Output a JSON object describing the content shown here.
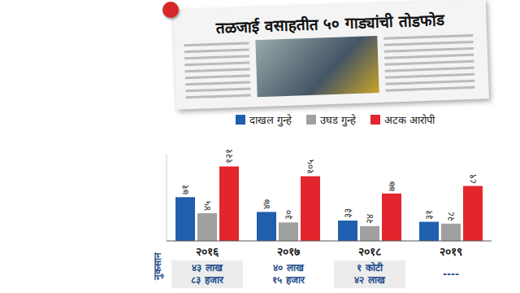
{
  "chart_data": {
    "type": "bar",
    "title": "तळजाई वसाहतीत ५० गाड्यांची तोडफोड",
    "categories": [
      "२०१६",
      "२०१७",
      "२०१८",
      "२०१९"
    ],
    "series": [
      {
        "name": "दाखल गुन्हे",
        "color": "#1f5fae",
        "values": [
          71,
          47,
          33,
          31
        ],
        "value_labels": [
          "७१",
          "४७",
          "३३",
          "३१"
        ]
      },
      {
        "name": "उघड गुन्हे",
        "color": "#a0a0a0",
        "values": [
          45,
          30,
          24,
          28
        ],
        "value_labels": [
          "४५",
          "३०",
          "२४",
          "२८"
        ]
      },
      {
        "name": "अटक आरोपी",
        "color": "#e3262d",
        "values": [
          121,
          105,
          77,
          89
        ],
        "value_labels": [
          "१२१",
          "१०५",
          "७७",
          "८९"
        ]
      }
    ],
    "ylim": [
      0,
      140
    ],
    "yticks": [],
    "tick_labels": "x",
    "data_labels": true,
    "legend": "top",
    "loss": {
      "label": "नुकसान",
      "values": [
        [
          "४३ लाख",
          "८३ हजार"
        ],
        [
          "४० लाख",
          "१५ हजार"
        ],
        [
          "१ कोटी",
          "४२ लाख"
        ],
        [
          "----"
        ]
      ]
    }
  }
}
